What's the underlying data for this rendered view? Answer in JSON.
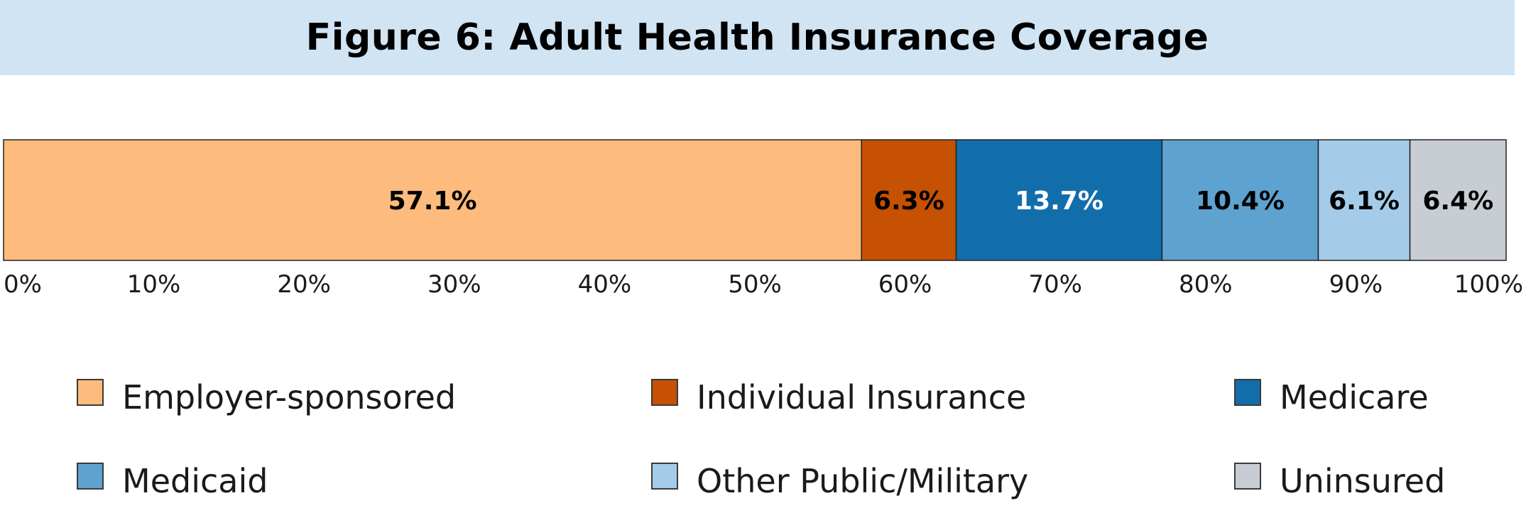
{
  "chart_data": {
    "type": "bar",
    "orientation": "horizontal-stacked",
    "title": "Figure 6: Adult Health Insurance Coverage",
    "xlim": [
      0,
      100
    ],
    "x_ticks": [
      "0%",
      "10%",
      "20%",
      "30%",
      "40%",
      "50%",
      "60%",
      "70%",
      "80%",
      "90%",
      "100%"
    ],
    "grid": false,
    "legend_position": "bottom",
    "series": [
      {
        "name": "Employer-sponsored",
        "value": 57.1,
        "label": "57.1%",
        "color": "#fdbb7d",
        "label_color": "#000000"
      },
      {
        "name": "Individual Insurance",
        "value": 6.3,
        "label": "6.3%",
        "color": "#c65103",
        "label_color": "#000000"
      },
      {
        "name": "Medicare",
        "value": 13.7,
        "label": "13.7%",
        "color": "#126eab",
        "label_color": "#ffffff"
      },
      {
        "name": "Medicaid",
        "value": 10.4,
        "label": "10.4%",
        "color": "#5ea2d0",
        "label_color": "#000000"
      },
      {
        "name": "Other Public/Military",
        "value": 6.1,
        "label": "6.1%",
        "color": "#a4cce9",
        "label_color": "#000000"
      },
      {
        "name": "Uninsured",
        "value": 6.4,
        "label": "6.4%",
        "color": "#c8cdd4",
        "label_color": "#000000"
      }
    ]
  }
}
